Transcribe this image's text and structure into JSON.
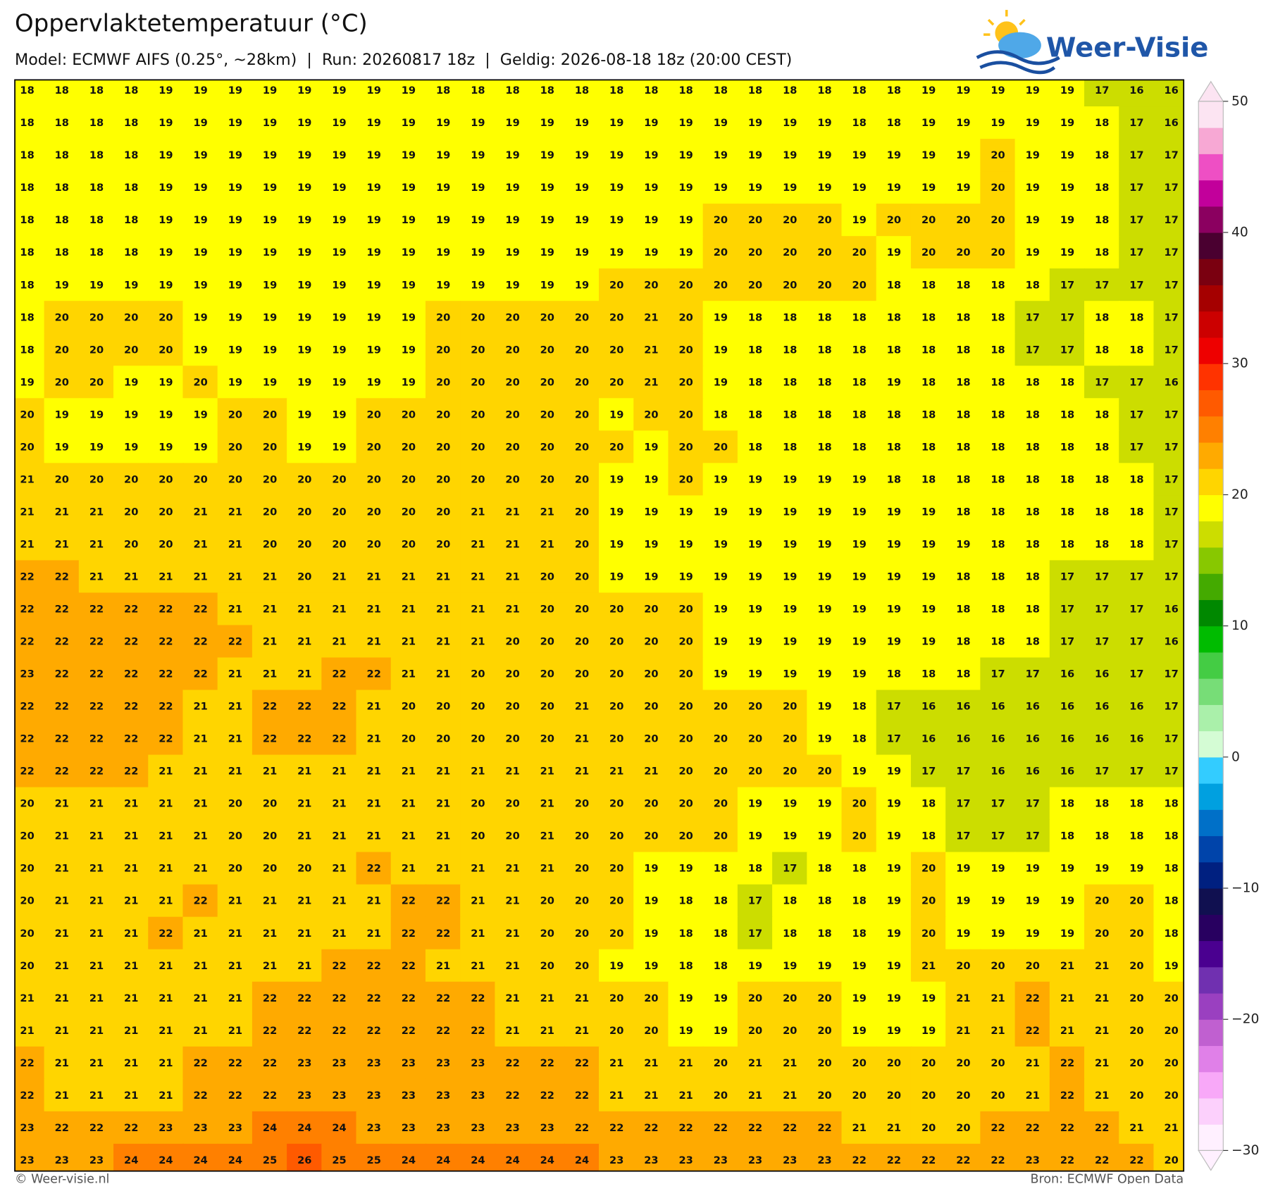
{
  "header": {
    "title": "Oppervlaktetemperatuur (°C)",
    "subtitle": "Model: ECMWF AIFS (0.25°, ~28km)  |  Run: 20260817 18z  |  Geldig: 2026-08-18 18z (20:00 CEST)",
    "logo": "Weer-Visie"
  },
  "map": {
    "grid": [
      [
        18,
        18,
        18,
        18,
        19,
        19,
        19,
        19,
        19,
        19,
        19,
        19,
        18,
        18,
        18,
        18,
        18,
        18,
        18,
        18,
        18,
        18,
        18,
        18,
        18,
        18,
        19,
        19,
        19,
        19,
        19,
        17,
        16,
        16
      ],
      [
        18,
        18,
        18,
        18,
        19,
        19,
        19,
        19,
        19,
        19,
        19,
        19,
        19,
        19,
        19,
        19,
        19,
        19,
        19,
        19,
        19,
        19,
        19,
        19,
        18,
        18,
        19,
        19,
        19,
        19,
        19,
        18,
        17,
        16
      ],
      [
        18,
        18,
        18,
        18,
        19,
        19,
        19,
        19,
        19,
        19,
        19,
        19,
        19,
        19,
        19,
        19,
        19,
        19,
        19,
        19,
        19,
        19,
        19,
        19,
        19,
        19,
        19,
        19,
        20,
        19,
        19,
        18,
        17,
        17
      ],
      [
        18,
        18,
        18,
        18,
        19,
        19,
        19,
        19,
        19,
        19,
        19,
        19,
        19,
        19,
        19,
        19,
        19,
        19,
        19,
        19,
        19,
        19,
        19,
        19,
        19,
        19,
        19,
        19,
        20,
        19,
        19,
        18,
        17,
        17
      ],
      [
        18,
        18,
        18,
        18,
        19,
        19,
        19,
        19,
        19,
        19,
        19,
        19,
        19,
        19,
        19,
        19,
        19,
        19,
        19,
        19,
        20,
        20,
        20,
        20,
        19,
        20,
        20,
        20,
        20,
        19,
        19,
        18,
        17,
        17
      ],
      [
        18,
        18,
        18,
        18,
        19,
        19,
        19,
        19,
        19,
        19,
        19,
        19,
        19,
        19,
        19,
        19,
        19,
        19,
        19,
        19,
        20,
        20,
        20,
        20,
        20,
        19,
        20,
        20,
        20,
        19,
        19,
        18,
        17,
        17
      ],
      [
        18,
        19,
        19,
        19,
        19,
        19,
        19,
        19,
        19,
        19,
        19,
        19,
        19,
        19,
        19,
        19,
        19,
        20,
        20,
        20,
        20,
        20,
        20,
        20,
        20,
        18,
        18,
        18,
        18,
        18,
        17,
        17,
        17,
        17
      ],
      [
        18,
        20,
        20,
        20,
        20,
        19,
        19,
        19,
        19,
        19,
        19,
        19,
        20,
        20,
        20,
        20,
        20,
        20,
        21,
        20,
        19,
        18,
        18,
        18,
        18,
        18,
        18,
        18,
        18,
        17,
        17,
        18,
        18,
        17
      ],
      [
        18,
        20,
        20,
        20,
        20,
        19,
        19,
        19,
        19,
        19,
        19,
        19,
        20,
        20,
        20,
        20,
        20,
        20,
        21,
        20,
        19,
        18,
        18,
        18,
        18,
        18,
        18,
        18,
        18,
        17,
        17,
        18,
        18,
        17
      ],
      [
        19,
        20,
        20,
        19,
        19,
        20,
        19,
        19,
        19,
        19,
        19,
        19,
        20,
        20,
        20,
        20,
        20,
        20,
        21,
        20,
        19,
        18,
        18,
        18,
        18,
        19,
        18,
        18,
        18,
        18,
        18,
        17,
        17,
        16
      ],
      [
        20,
        19,
        19,
        19,
        19,
        19,
        20,
        20,
        19,
        19,
        20,
        20,
        20,
        20,
        20,
        20,
        20,
        19,
        20,
        20,
        18,
        18,
        18,
        18,
        18,
        18,
        18,
        18,
        18,
        18,
        18,
        18,
        17,
        17
      ],
      [
        20,
        19,
        19,
        19,
        19,
        19,
        20,
        20,
        19,
        19,
        20,
        20,
        20,
        20,
        20,
        20,
        20,
        20,
        19,
        20,
        20,
        18,
        18,
        18,
        18,
        18,
        18,
        18,
        18,
        18,
        18,
        18,
        17,
        17
      ],
      [
        21,
        20,
        20,
        20,
        20,
        20,
        20,
        20,
        20,
        20,
        20,
        20,
        20,
        20,
        20,
        20,
        20,
        19,
        19,
        20,
        19,
        19,
        19,
        19,
        19,
        18,
        18,
        18,
        18,
        18,
        18,
        18,
        18,
        17
      ],
      [
        21,
        21,
        21,
        20,
        20,
        21,
        21,
        20,
        20,
        20,
        20,
        20,
        20,
        21,
        21,
        21,
        20,
        19,
        19,
        19,
        19,
        19,
        19,
        19,
        19,
        19,
        19,
        18,
        18,
        18,
        18,
        18,
        18,
        17
      ],
      [
        21,
        21,
        21,
        20,
        20,
        21,
        21,
        20,
        20,
        20,
        20,
        20,
        20,
        21,
        21,
        21,
        20,
        19,
        19,
        19,
        19,
        19,
        19,
        19,
        19,
        19,
        19,
        19,
        18,
        18,
        18,
        18,
        18,
        17
      ],
      [
        22,
        22,
        21,
        21,
        21,
        21,
        21,
        21,
        20,
        21,
        21,
        21,
        21,
        21,
        21,
        20,
        20,
        19,
        19,
        19,
        19,
        19,
        19,
        19,
        19,
        19,
        19,
        18,
        18,
        18,
        17,
        17,
        17,
        17
      ],
      [
        22,
        22,
        22,
        22,
        22,
        22,
        21,
        21,
        21,
        21,
        21,
        21,
        21,
        21,
        21,
        20,
        20,
        20,
        20,
        20,
        19,
        19,
        19,
        19,
        19,
        19,
        19,
        18,
        18,
        18,
        17,
        17,
        17,
        16
      ],
      [
        22,
        22,
        22,
        22,
        22,
        22,
        22,
        21,
        21,
        21,
        21,
        21,
        21,
        21,
        20,
        20,
        20,
        20,
        20,
        20,
        19,
        19,
        19,
        19,
        19,
        19,
        19,
        18,
        18,
        18,
        17,
        17,
        17,
        16
      ],
      [
        23,
        22,
        22,
        22,
        22,
        22,
        21,
        21,
        21,
        22,
        22,
        21,
        21,
        20,
        20,
        20,
        20,
        20,
        20,
        20,
        19,
        19,
        19,
        19,
        19,
        18,
        18,
        18,
        17,
        17,
        16,
        16,
        17,
        17
      ],
      [
        22,
        22,
        22,
        22,
        22,
        21,
        21,
        22,
        22,
        22,
        21,
        20,
        20,
        20,
        20,
        20,
        21,
        20,
        20,
        20,
        20,
        20,
        20,
        19,
        18,
        17,
        16,
        16,
        16,
        16,
        16,
        16,
        16,
        17
      ],
      [
        22,
        22,
        22,
        22,
        22,
        21,
        21,
        22,
        22,
        22,
        21,
        20,
        20,
        20,
        20,
        20,
        21,
        20,
        20,
        20,
        20,
        20,
        20,
        19,
        18,
        17,
        16,
        16,
        16,
        16,
        16,
        16,
        16,
        17
      ],
      [
        22,
        22,
        22,
        22,
        21,
        21,
        21,
        21,
        21,
        21,
        21,
        21,
        21,
        21,
        21,
        21,
        21,
        21,
        21,
        20,
        20,
        20,
        20,
        20,
        19,
        19,
        17,
        17,
        16,
        16,
        16,
        17,
        17,
        17
      ],
      [
        20,
        21,
        21,
        21,
        21,
        21,
        20,
        20,
        21,
        21,
        21,
        21,
        21,
        20,
        20,
        21,
        20,
        20,
        20,
        20,
        20,
        19,
        19,
        19,
        20,
        19,
        18,
        17,
        17,
        17,
        18,
        18,
        18,
        18
      ],
      [
        20,
        21,
        21,
        21,
        21,
        21,
        20,
        20,
        21,
        21,
        21,
        21,
        21,
        20,
        20,
        21,
        20,
        20,
        20,
        20,
        20,
        19,
        19,
        19,
        20,
        19,
        18,
        17,
        17,
        17,
        18,
        18,
        18,
        18
      ],
      [
        20,
        21,
        21,
        21,
        21,
        21,
        20,
        20,
        20,
        21,
        22,
        21,
        21,
        21,
        21,
        21,
        20,
        20,
        19,
        19,
        18,
        18,
        17,
        18,
        18,
        19,
        20,
        19,
        19,
        19,
        19,
        19,
        19,
        18
      ],
      [
        20,
        21,
        21,
        21,
        21,
        22,
        21,
        21,
        21,
        21,
        21,
        22,
        22,
        21,
        21,
        20,
        20,
        20,
        19,
        18,
        18,
        17,
        18,
        18,
        18,
        19,
        20,
        19,
        19,
        19,
        19,
        20,
        20,
        18
      ],
      [
        20,
        21,
        21,
        21,
        22,
        21,
        21,
        21,
        21,
        21,
        21,
        22,
        22,
        21,
        21,
        20,
        20,
        20,
        19,
        18,
        18,
        17,
        18,
        18,
        18,
        19,
        20,
        19,
        19,
        19,
        19,
        20,
        20,
        18
      ],
      [
        20,
        21,
        21,
        21,
        21,
        21,
        21,
        21,
        21,
        22,
        22,
        22,
        21,
        21,
        21,
        20,
        20,
        19,
        19,
        18,
        18,
        19,
        19,
        19,
        19,
        19,
        21,
        20,
        20,
        20,
        21,
        21,
        20,
        19
      ],
      [
        21,
        21,
        21,
        21,
        21,
        21,
        21,
        22,
        22,
        22,
        22,
        22,
        22,
        22,
        21,
        21,
        21,
        20,
        20,
        19,
        19,
        20,
        20,
        20,
        19,
        19,
        19,
        21,
        21,
        22,
        21,
        21,
        20,
        20
      ],
      [
        21,
        21,
        21,
        21,
        21,
        21,
        21,
        22,
        22,
        22,
        22,
        22,
        22,
        22,
        21,
        21,
        21,
        20,
        20,
        19,
        19,
        20,
        20,
        20,
        19,
        19,
        19,
        21,
        21,
        22,
        21,
        21,
        20,
        20
      ],
      [
        22,
        21,
        21,
        21,
        21,
        22,
        22,
        22,
        23,
        23,
        23,
        23,
        23,
        23,
        22,
        22,
        22,
        21,
        21,
        21,
        20,
        21,
        21,
        20,
        20,
        20,
        20,
        20,
        20,
        21,
        22,
        21,
        20,
        20
      ],
      [
        22,
        21,
        21,
        21,
        21,
        22,
        22,
        22,
        23,
        23,
        23,
        23,
        23,
        23,
        22,
        22,
        22,
        21,
        21,
        21,
        20,
        21,
        21,
        20,
        20,
        20,
        20,
        20,
        20,
        21,
        22,
        21,
        20,
        20
      ],
      [
        23,
        22,
        22,
        22,
        23,
        23,
        23,
        24,
        24,
        24,
        23,
        23,
        23,
        23,
        23,
        23,
        22,
        22,
        22,
        22,
        22,
        22,
        22,
        22,
        21,
        21,
        20,
        20,
        22,
        22,
        22,
        22,
        21,
        21
      ],
      [
        23,
        23,
        23,
        24,
        24,
        24,
        24,
        25,
        26,
        25,
        25,
        24,
        24,
        24,
        24,
        24,
        24,
        23,
        23,
        23,
        23,
        23,
        23,
        23,
        22,
        22,
        22,
        22,
        22,
        23,
        22,
        22,
        22,
        20
      ]
    ]
  },
  "colorbar": {
    "lim": [
      -30,
      50
    ],
    "ticks": [
      50,
      40,
      30,
      20,
      10,
      0,
      {
        "value": -10,
        "label": "−10"
      },
      {
        "value": -20,
        "label": "−20"
      },
      {
        "value": -30,
        "label": "−30"
      }
    ],
    "colors": [
      "#fff0ff",
      "#fcd0fc",
      "#f8a8f8",
      "#e080e8",
      "#c060d0",
      "#9a40c0",
      "#7030b0",
      "#4a0090",
      "#280060",
      "#101050",
      "#002080",
      "#0044aa",
      "#0070c8",
      "#00a0e0",
      "#33ccff",
      "#d4fcd4",
      "#aaf0aa",
      "#77dd77",
      "#44cc44",
      "#00bb00",
      "#008800",
      "#44aa00",
      "#88c800",
      "#ccdd00",
      "#ffff00",
      "#ffd500",
      "#ffaa00",
      "#ff8000",
      "#ff5a00",
      "#ff3300",
      "#ee0000",
      "#cc0000",
      "#a50000",
      "#7a0010",
      "#4a0030",
      "#8b0060",
      "#c2009b",
      "#ee4fc4",
      "#f7a8d4",
      "#fce4f2"
    ]
  },
  "footer": {
    "left": "© Weer-visie.nl",
    "right": "Bron: ECMWF Open Data"
  }
}
